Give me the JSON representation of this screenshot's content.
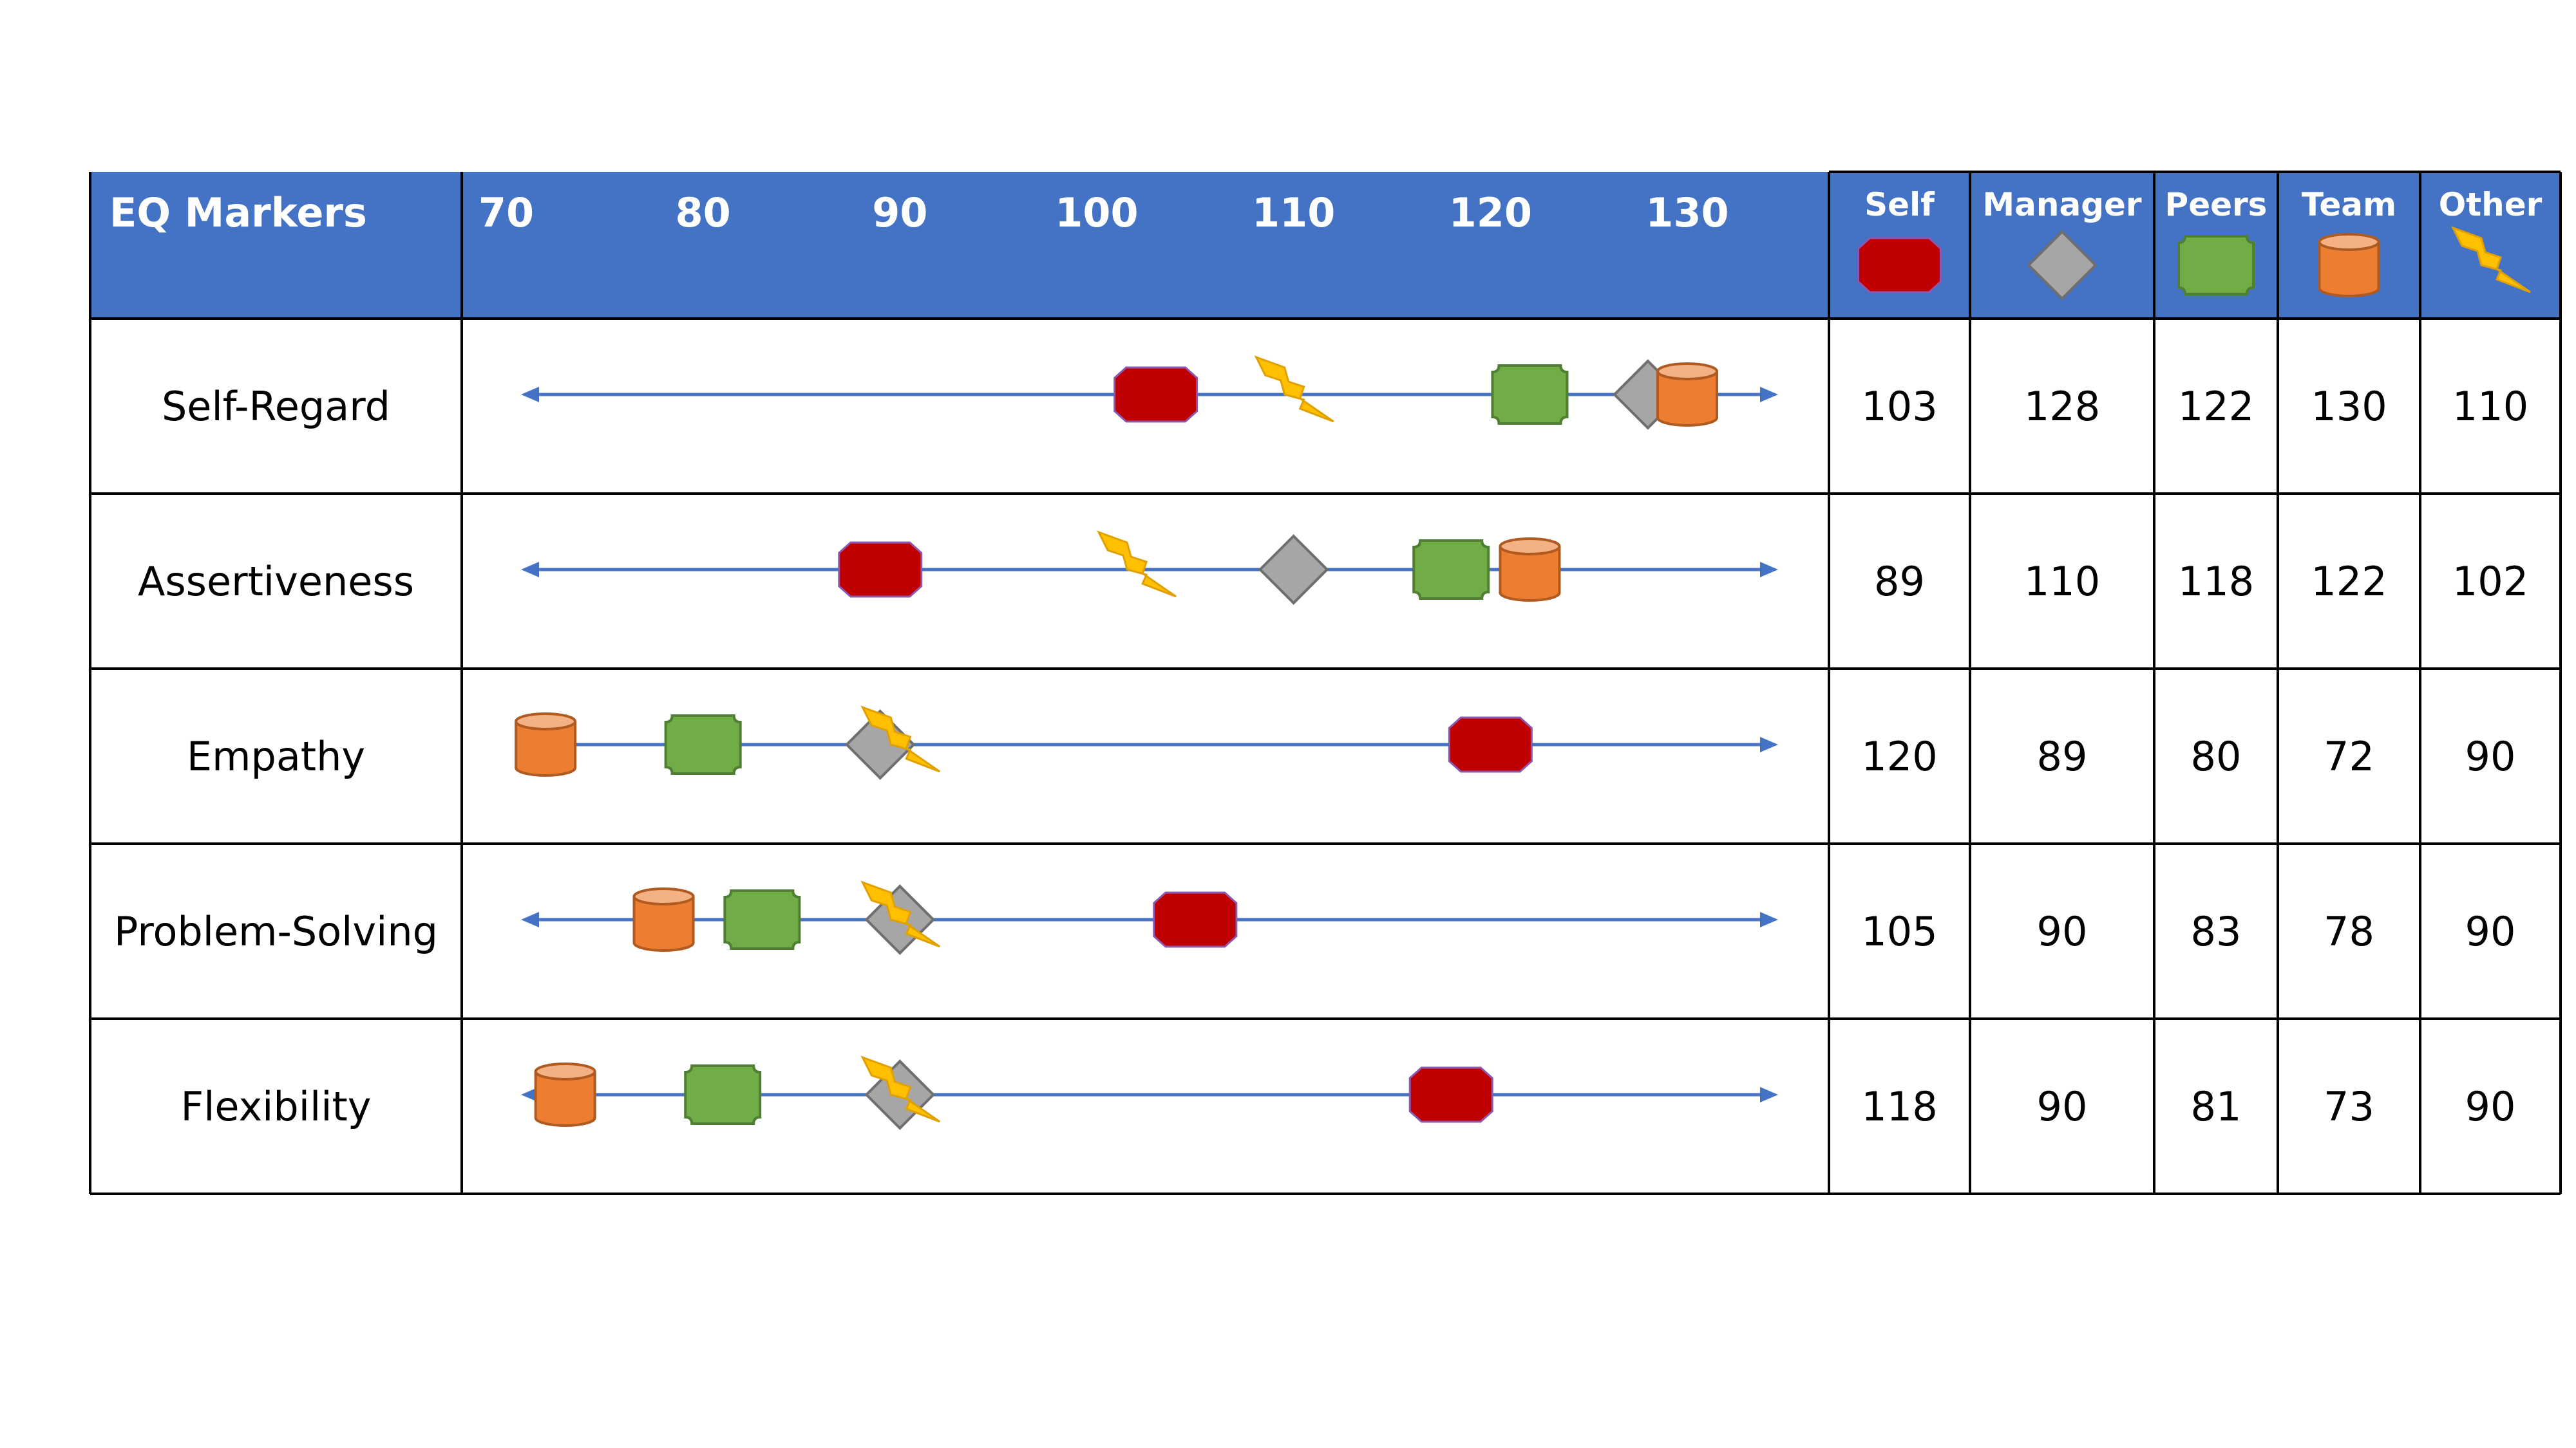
{
  "table": {
    "header_label": "EQ Markers"
  },
  "colors": {
    "header_bg": "#4472C4",
    "line": "#4472C4",
    "grid": "#000000",
    "self": "#C00000",
    "manager": "#A6A6A6",
    "peers": "#70AD47",
    "team": "#ED7D31",
    "other": "#FFC000"
  },
  "chart_data": {
    "type": "table",
    "axis_ticks": [
      70,
      80,
      90,
      100,
      110,
      120,
      130
    ],
    "series": [
      {
        "name": "Self",
        "marker": "octagon-icon",
        "color": "#C00000"
      },
      {
        "name": "Manager",
        "marker": "diamond-icon",
        "color": "#A6A6A6"
      },
      {
        "name": "Peers",
        "marker": "plaque-icon",
        "color": "#70AD47"
      },
      {
        "name": "Team",
        "marker": "cylinder-icon",
        "color": "#ED7D31"
      },
      {
        "name": "Other",
        "marker": "lightning-icon",
        "color": "#FFC000"
      }
    ],
    "rows": [
      {
        "label": "Self-Regard",
        "values": [
          103,
          128,
          122,
          130,
          110
        ]
      },
      {
        "label": "Assertiveness",
        "values": [
          89,
          110,
          118,
          122,
          102
        ]
      },
      {
        "label": "Empathy",
        "values": [
          120,
          89,
          80,
          72,
          90
        ]
      },
      {
        "label": "Problem-Solving",
        "values": [
          105,
          90,
          83,
          78,
          90
        ]
      },
      {
        "label": "Flexibility",
        "values": [
          118,
          90,
          81,
          73,
          90
        ]
      }
    ]
  }
}
